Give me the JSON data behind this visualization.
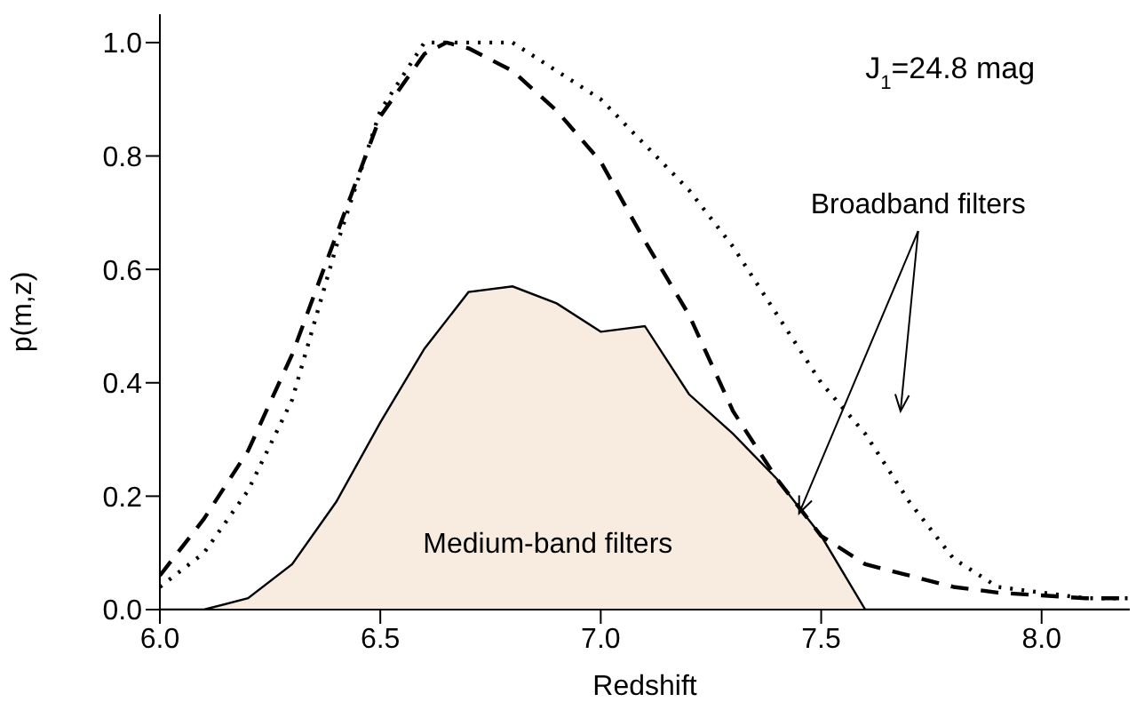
{
  "chart_data": {
    "type": "line",
    "xlabel": "Redshift",
    "ylabel": "p(m,z)",
    "xlim": [
      6.0,
      8.2
    ],
    "ylim": [
      0,
      1.05
    ],
    "xticks": [
      {
        "value": 6,
        "label": "6.0"
      },
      {
        "value": 6.5,
        "label": "6.5"
      },
      {
        "value": 7,
        "label": "7.0"
      },
      {
        "value": 7.5,
        "label": "7.5"
      },
      {
        "value": 8,
        "label": "8.0"
      }
    ],
    "yticks": [
      {
        "value": 0,
        "label": "0.0"
      },
      {
        "value": 0.2,
        "label": "0.2"
      },
      {
        "value": 0.4,
        "label": "0.4"
      },
      {
        "value": 0.6,
        "label": "0.6"
      },
      {
        "value": 0.8,
        "label": "0.8"
      },
      {
        "value": 1,
        "label": "1.0"
      }
    ],
    "annotations": [
      "J$_{1}$=24.8 mag",
      {
        "text": "Broadband filters",
        "x": 7.45,
        "y": 0.17
      },
      "Medium-band filters"
    ],
    "series": [
      {
        "type": "area",
        "color": "#f8ece0",
        "line_style": "solid",
        "x": [
          6.0,
          6.1,
          6.2,
          6.3,
          6.4,
          6.5,
          6.6,
          6.7,
          6.8,
          6.9,
          7.0,
          7.1,
          7.2,
          7.3,
          7.4,
          7.5,
          7.6,
          7.7,
          7.8,
          7.9,
          8.0,
          8.1,
          8.2
        ],
        "values": [
          0,
          0,
          0.02,
          0.08,
          0.19,
          0.33,
          0.46,
          0.56,
          0.57,
          0.54,
          0.49,
          0.5,
          0.38,
          0.31,
          0.23,
          0.13,
          0,
          0,
          0,
          0,
          0,
          0,
          0
        ]
      },
      {
        "color": "#000000",
        "line_style": "dashed",
        "x": [
          6.0,
          6.1,
          6.2,
          6.3,
          6.4,
          6.5,
          6.6,
          6.65,
          6.7,
          6.8,
          6.9,
          7.0,
          7.1,
          7.2,
          7.3,
          7.4,
          7.5,
          7.6,
          7.7,
          7.8,
          7.9,
          8.0,
          8.1,
          8.2
        ],
        "values": [
          0.06,
          0.16,
          0.28,
          0.45,
          0.66,
          0.87,
          0.98,
          1.0,
          0.99,
          0.95,
          0.88,
          0.79,
          0.65,
          0.52,
          0.35,
          0.23,
          0.13,
          0.08,
          0.06,
          0.04,
          0.03,
          0.025,
          0.02,
          0.02
        ]
      },
      {
        "color": "#000000",
        "line_style": "dotted",
        "x": [
          6.0,
          6.1,
          6.2,
          6.3,
          6.4,
          6.5,
          6.6,
          6.7,
          6.8,
          6.9,
          7.0,
          7.1,
          7.2,
          7.3,
          7.4,
          7.5,
          7.6,
          7.7,
          7.8,
          7.9,
          8.0,
          8.1,
          8.2
        ],
        "values": [
          0.04,
          0.1,
          0.21,
          0.37,
          0.64,
          0.88,
          1.0,
          1.0,
          1.0,
          0.95,
          0.9,
          0.82,
          0.74,
          0.64,
          0.52,
          0.4,
          0.31,
          0.19,
          0.09,
          0.04,
          0.03,
          0.02,
          0.02
        ]
      }
    ]
  }
}
